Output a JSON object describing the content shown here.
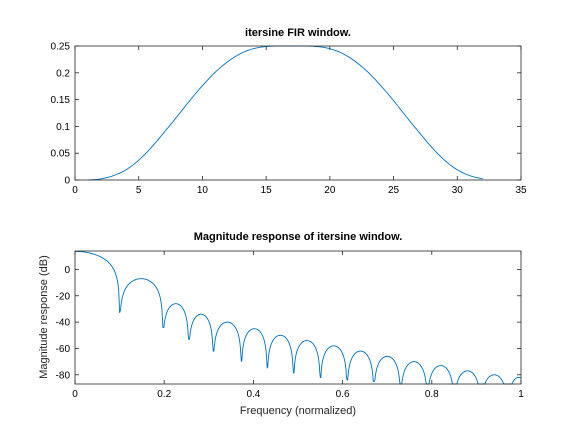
{
  "chart_data": [
    {
      "type": "line",
      "title": "itersine FIR window.",
      "xlabel": "",
      "ylabel": "",
      "xlim": [
        0,
        35
      ],
      "ylim": [
        0,
        0.25
      ],
      "xticks": [
        0,
        5,
        10,
        15,
        20,
        25,
        30,
        35
      ],
      "xtick_labels": [
        "0",
        "5",
        "10",
        "15",
        "20",
        "25",
        "30",
        "35"
      ],
      "yticks": [
        0,
        0.05,
        0.1,
        0.15,
        0.2,
        0.25
      ],
      "ytick_labels": [
        "0",
        "0.05",
        "0.1",
        "0.15",
        "0.2",
        "0.25"
      ],
      "grid": false,
      "series": [
        {
          "color": "#0072bd",
          "x": [
            1,
            2,
            3,
            4,
            5,
            6,
            7,
            8,
            9,
            10,
            11,
            12,
            13,
            14,
            15,
            16,
            17,
            18,
            19,
            20,
            21,
            22,
            23,
            24,
            25,
            26,
            27,
            28,
            29,
            30,
            31,
            32
          ],
          "y": [
            0.0,
            0.002,
            0.008,
            0.019,
            0.037,
            0.061,
            0.089,
            0.118,
            0.148,
            0.176,
            0.201,
            0.221,
            0.236,
            0.245,
            0.249,
            0.25,
            0.25,
            0.25,
            0.249,
            0.245,
            0.236,
            0.221,
            0.201,
            0.176,
            0.148,
            0.118,
            0.089,
            0.061,
            0.037,
            0.019,
            0.008,
            0.002
          ]
        }
      ]
    },
    {
      "type": "line",
      "title": "Magnitude response of itersine window.",
      "xlabel": "Frequency (normalized)",
      "ylabel": "Magnitude response (dB)",
      "xlim": [
        0,
        1
      ],
      "ylim": [
        -87,
        14
      ],
      "xticks": [
        0,
        0.2,
        0.4,
        0.6,
        0.8,
        1
      ],
      "xtick_labels": [
        "0",
        "0.2",
        "0.4",
        "0.6",
        "0.8",
        "1"
      ],
      "yticks": [
        -80,
        -60,
        -40,
        -20,
        0
      ],
      "ytick_labels": [
        "-80",
        "-60",
        "-40",
        "-20",
        "0"
      ],
      "grid": false,
      "mainlobe": {
        "peak": 13.7,
        "null_at": 0.1
      },
      "nulls": [
        0.1,
        0.197,
        0.255,
        0.31,
        0.373,
        0.431,
        0.49,
        0.55,
        0.61,
        0.67,
        0.73,
        0.79,
        0.85,
        0.91,
        0.97
      ],
      "null_depths": [
        -33,
        -44,
        -53,
        -62,
        -70,
        -75,
        -79,
        -82,
        -84,
        -85,
        -87,
        -87,
        -87,
        -87,
        -87
      ],
      "sidelobe_peaks": [
        -7,
        -26,
        -34,
        -40,
        -45,
        -50,
        -54,
        -58,
        -62,
        -66,
        -70,
        -73,
        -77,
        -80,
        -82
      ]
    }
  ]
}
